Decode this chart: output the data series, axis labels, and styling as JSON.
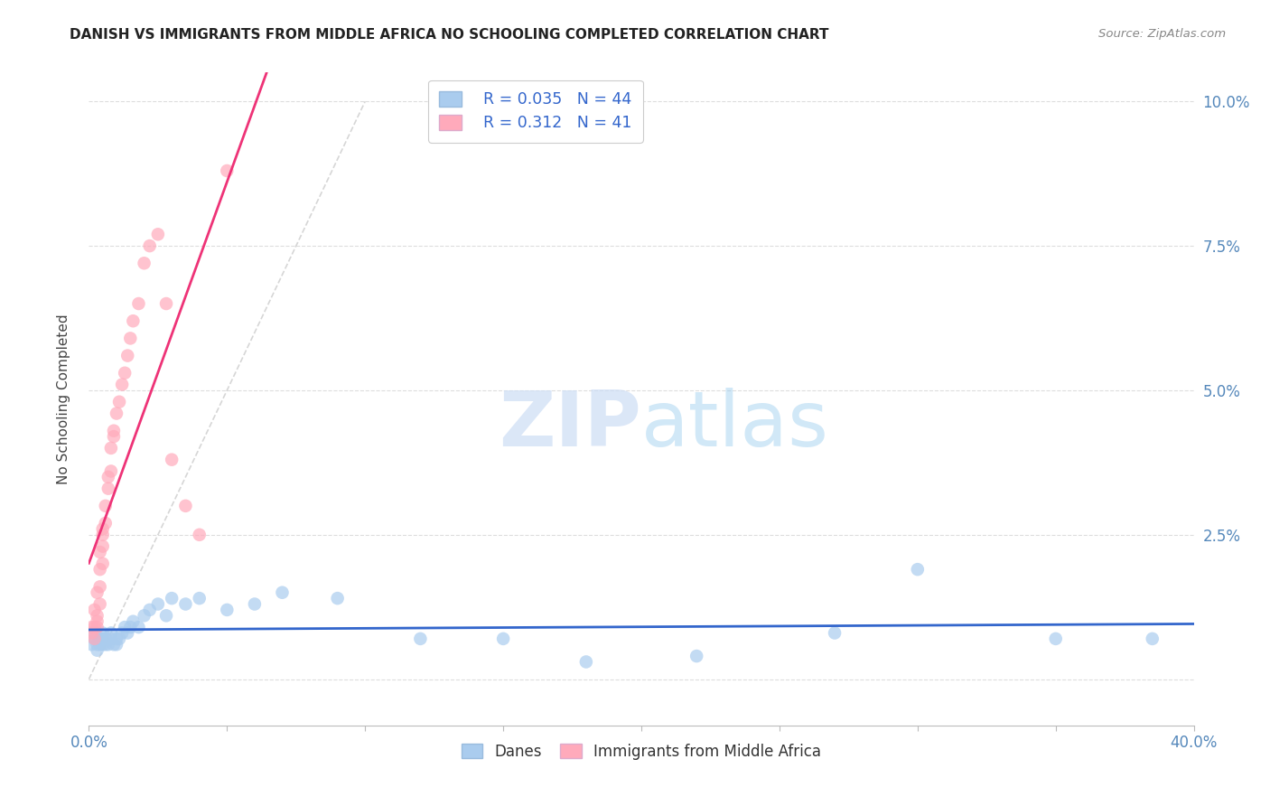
{
  "title": "DANISH VS IMMIGRANTS FROM MIDDLE AFRICA NO SCHOOLING COMPLETED CORRELATION CHART",
  "source": "Source: ZipAtlas.com",
  "ylabel": "No Schooling Completed",
  "xlim": [
    0.0,
    0.4
  ],
  "ylim": [
    -0.008,
    0.105
  ],
  "yticks": [
    0.0,
    0.025,
    0.05,
    0.075,
    0.1
  ],
  "ytick_labels": [
    "",
    "2.5%",
    "5.0%",
    "7.5%",
    "10.0%"
  ],
  "xticks": [
    0.0,
    0.05,
    0.1,
    0.15,
    0.2,
    0.25,
    0.3,
    0.35,
    0.4
  ],
  "xtick_labels": [
    "0.0%",
    "",
    "",
    "",
    "",
    "",
    "",
    "",
    "40.0%"
  ],
  "legend_r1": "R = 0.035",
  "legend_n1": "N = 44",
  "legend_r2": "R = 0.312",
  "legend_n2": "N = 41",
  "color_danes": "#aaccee",
  "color_immigrants": "#ffaabb",
  "color_trendline_danes": "#3366cc",
  "color_trendline_immigrants": "#ee3377",
  "color_diagonal": "#cccccc",
  "watermark_zip": "ZIP",
  "watermark_atlas": "atlas",
  "danes_x": [
    0.001,
    0.002,
    0.002,
    0.003,
    0.003,
    0.004,
    0.004,
    0.005,
    0.005,
    0.005,
    0.006,
    0.006,
    0.007,
    0.008,
    0.008,
    0.009,
    0.01,
    0.01,
    0.011,
    0.012,
    0.013,
    0.014,
    0.015,
    0.016,
    0.018,
    0.02,
    0.022,
    0.025,
    0.028,
    0.03,
    0.035,
    0.04,
    0.05,
    0.06,
    0.07,
    0.09,
    0.12,
    0.15,
    0.18,
    0.22,
    0.27,
    0.3,
    0.35,
    0.385
  ],
  "danes_y": [
    0.006,
    0.007,
    0.008,
    0.005,
    0.006,
    0.007,
    0.006,
    0.006,
    0.007,
    0.008,
    0.006,
    0.007,
    0.006,
    0.007,
    0.008,
    0.006,
    0.007,
    0.006,
    0.007,
    0.008,
    0.009,
    0.008,
    0.009,
    0.01,
    0.009,
    0.011,
    0.012,
    0.013,
    0.011,
    0.014,
    0.013,
    0.014,
    0.012,
    0.013,
    0.015,
    0.014,
    0.007,
    0.007,
    0.003,
    0.004,
    0.008,
    0.019,
    0.007,
    0.007
  ],
  "immigrants_x": [
    0.001,
    0.001,
    0.002,
    0.002,
    0.002,
    0.003,
    0.003,
    0.003,
    0.003,
    0.004,
    0.004,
    0.004,
    0.004,
    0.005,
    0.005,
    0.005,
    0.005,
    0.006,
    0.006,
    0.007,
    0.007,
    0.008,
    0.008,
    0.009,
    0.009,
    0.01,
    0.011,
    0.012,
    0.013,
    0.014,
    0.015,
    0.016,
    0.018,
    0.02,
    0.022,
    0.025,
    0.028,
    0.03,
    0.035,
    0.04,
    0.05
  ],
  "immigrants_y": [
    0.008,
    0.009,
    0.007,
    0.009,
    0.012,
    0.009,
    0.01,
    0.011,
    0.015,
    0.013,
    0.016,
    0.019,
    0.022,
    0.02,
    0.023,
    0.025,
    0.026,
    0.027,
    0.03,
    0.033,
    0.035,
    0.036,
    0.04,
    0.042,
    0.043,
    0.046,
    0.048,
    0.051,
    0.053,
    0.056,
    0.059,
    0.062,
    0.065,
    0.072,
    0.075,
    0.077,
    0.065,
    0.038,
    0.03,
    0.025,
    0.088
  ]
}
